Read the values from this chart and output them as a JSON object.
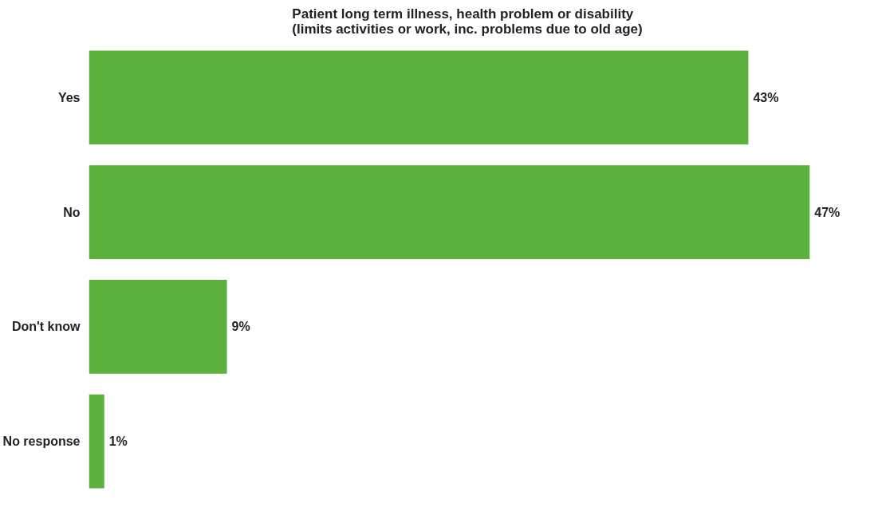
{
  "chart_data": {
    "type": "bar",
    "orientation": "horizontal",
    "title": "Patient long term illness, health problem or disability\n(limits activities or work, inc. problems due to old age)",
    "categories": [
      "Yes",
      "No",
      "Don't know",
      "No response"
    ],
    "values": [
      43,
      47,
      9,
      1
    ],
    "value_labels": [
      "43%",
      "47%",
      "9%",
      "1%"
    ],
    "color": "#5cb03c",
    "grid": false
  }
}
